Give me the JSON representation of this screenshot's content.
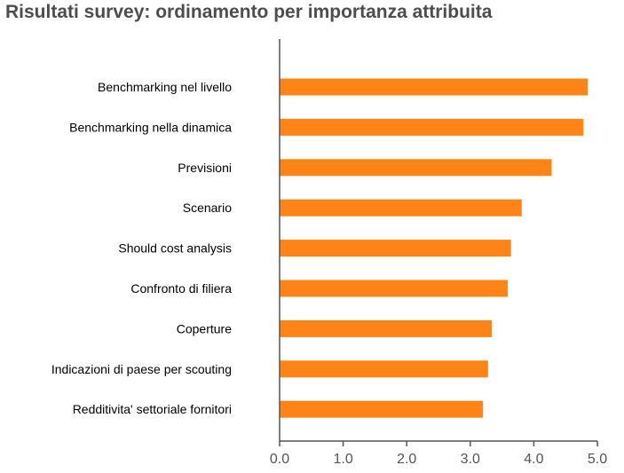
{
  "chart_data": {
    "type": "bar",
    "orientation": "horizontal",
    "title": "Risultati survey: ordinamento per importanza attribuita",
    "xlabel": "",
    "ylabel": "",
    "categories": [
      "Benchmarking nel livello",
      "Benchmarking nella dinamica",
      "Previsioni",
      "Scenario",
      "Should cost analysis",
      "Confronto di filiera",
      "Coperture",
      "Indicazioni di paese per scouting",
      "Redditivita' settoriale fornitori"
    ],
    "values": [
      4.85,
      4.78,
      4.28,
      3.81,
      3.64,
      3.59,
      3.34,
      3.28,
      3.2
    ],
    "xlim": [
      0,
      5
    ],
    "xticks": [
      "0.0",
      "1.0",
      "2.0",
      "3.0",
      "4.0",
      "5.0"
    ],
    "grid": false,
    "bar_color": "#ff8417",
    "axis_color": "#555555"
  }
}
